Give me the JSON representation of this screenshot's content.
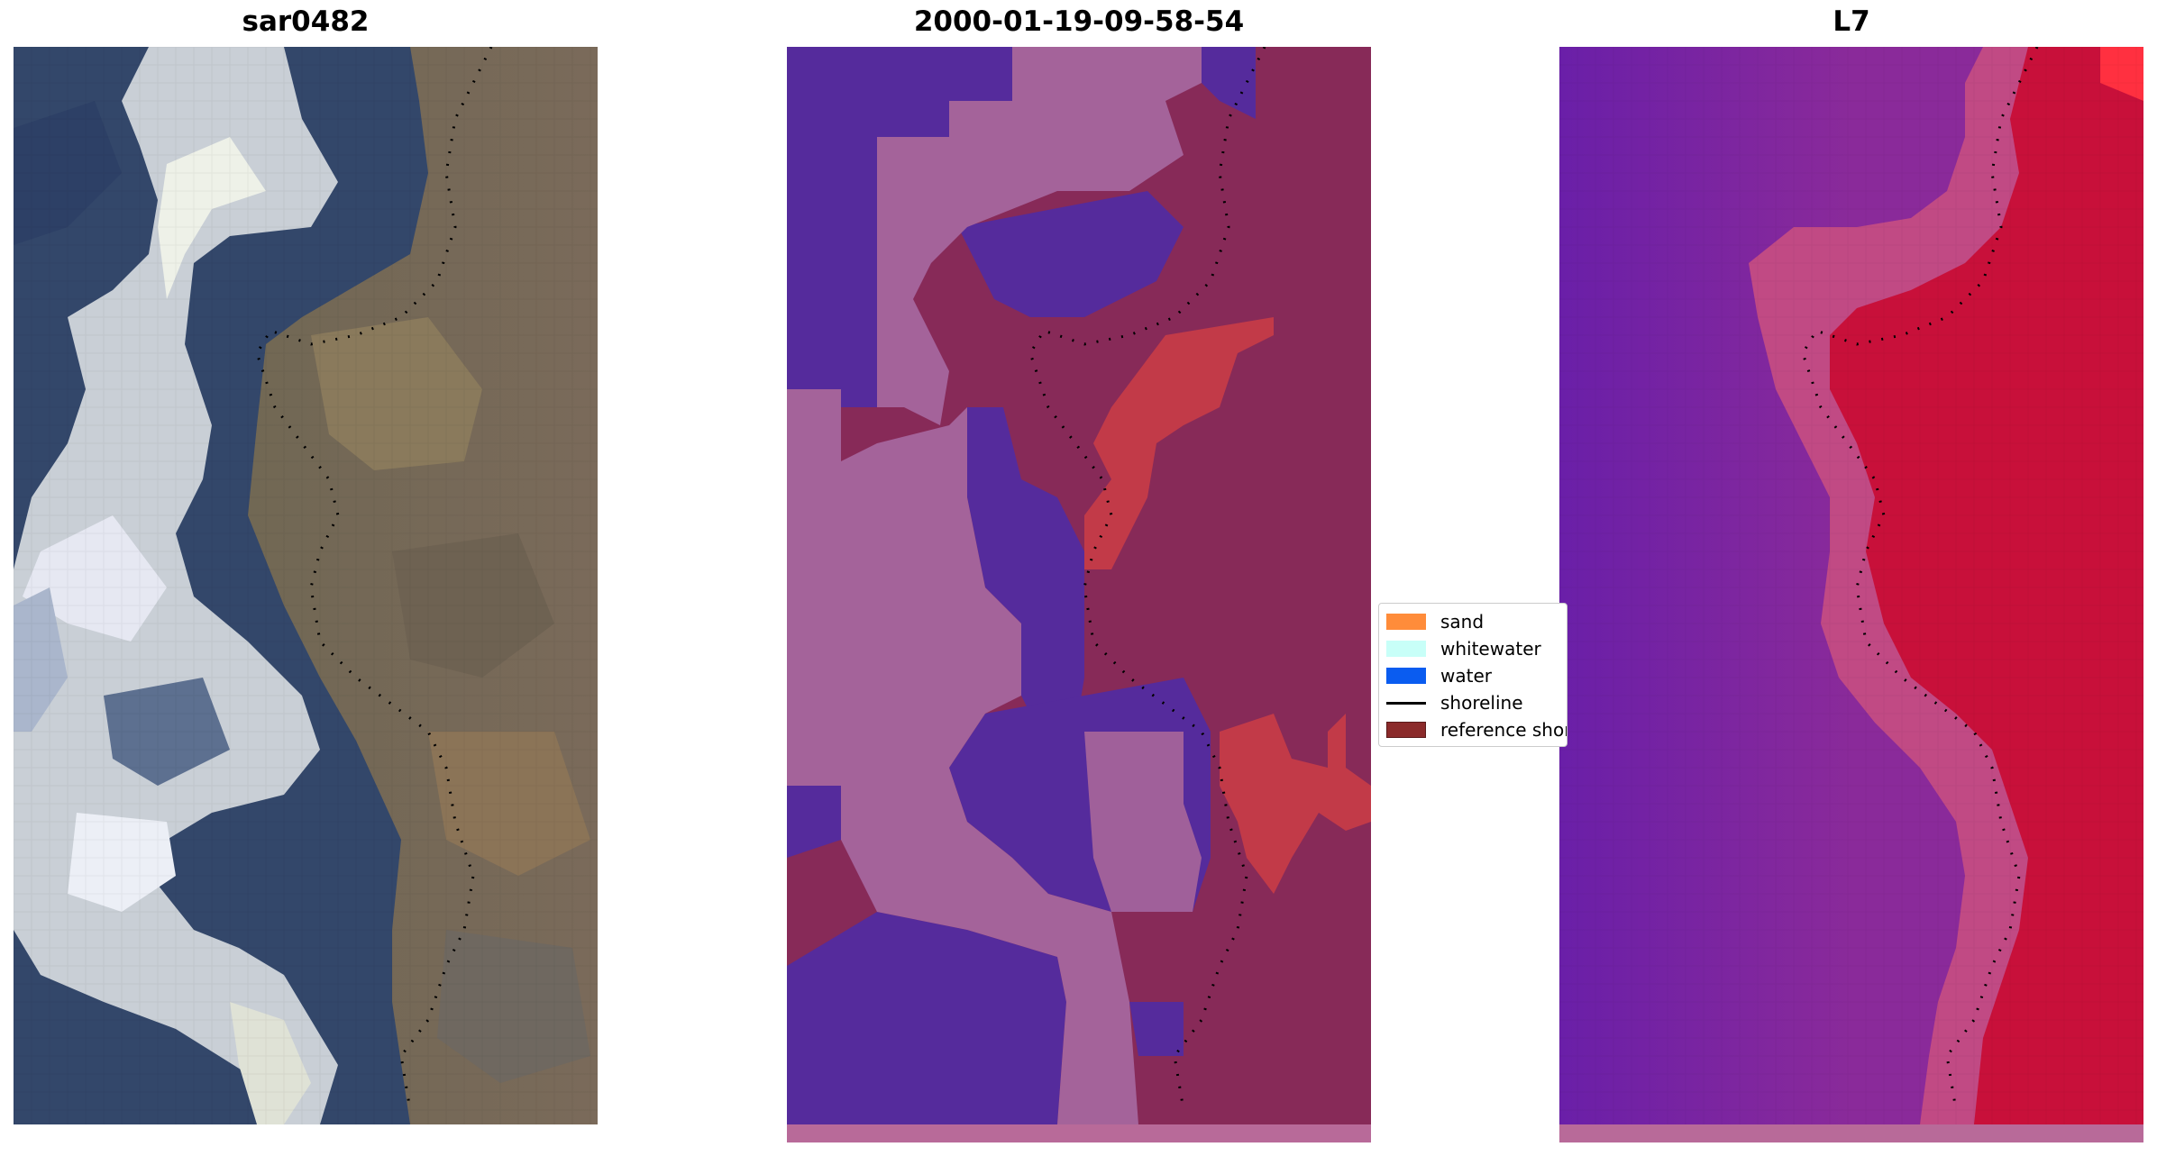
{
  "panels": {
    "left_title": "sar0482",
    "center_title": "2000-01-19-09-58-54",
    "right_title": "L7"
  },
  "legend": {
    "items": [
      {
        "label": "sand",
        "color": "#ff8c3a"
      },
      {
        "label": "whitewater",
        "color": "#c8fff8"
      },
      {
        "label": "water",
        "color": "#0a5cf0"
      },
      {
        "label": "shoreline",
        "color": "#000000"
      },
      {
        "label": "reference shoreline",
        "color": "#8b2a2a"
      }
    ]
  },
  "colors": {
    "classified_water": "#552b9c",
    "classified_whitewater": "#a4639a",
    "classified_land": "#872a58",
    "classified_sand": "#c23a48",
    "mndwi_low": "#6a1fa8",
    "mndwi_high": "#c8103a"
  }
}
